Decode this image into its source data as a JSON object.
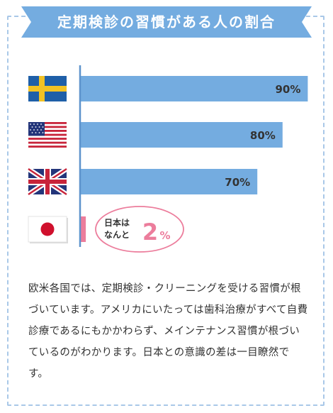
{
  "title": "定期検診の習慣がある人の割合",
  "chart_data": {
    "type": "bar",
    "orientation": "horizontal",
    "categories": [
      "sweden",
      "usa",
      "uk",
      "japan"
    ],
    "values": [
      90,
      80,
      70,
      2
    ],
    "value_labels": [
      "90%",
      "80%",
      "70%",
      ""
    ],
    "xlim": [
      0,
      100
    ],
    "bar_color": "#74ace0",
    "highlight_color": "#ec7d9c"
  },
  "callout": {
    "line1": "日本は",
    "line2": "なんと",
    "number": "2",
    "unit": "%"
  },
  "description": "欧米各国では、定期検診・クリーニングを受ける習慣が根づいています。アメリカにいたっては歯科治療がすべて自費診療であるにもかかわらず、メインテナンス習慣が根づいているのがわかります。日本との意識の差は一目瞭然です。",
  "colors": {
    "ribbon": "#74ace0",
    "frame": "#a9c8e8",
    "axis": "#5d93cc",
    "text": "#333333"
  }
}
